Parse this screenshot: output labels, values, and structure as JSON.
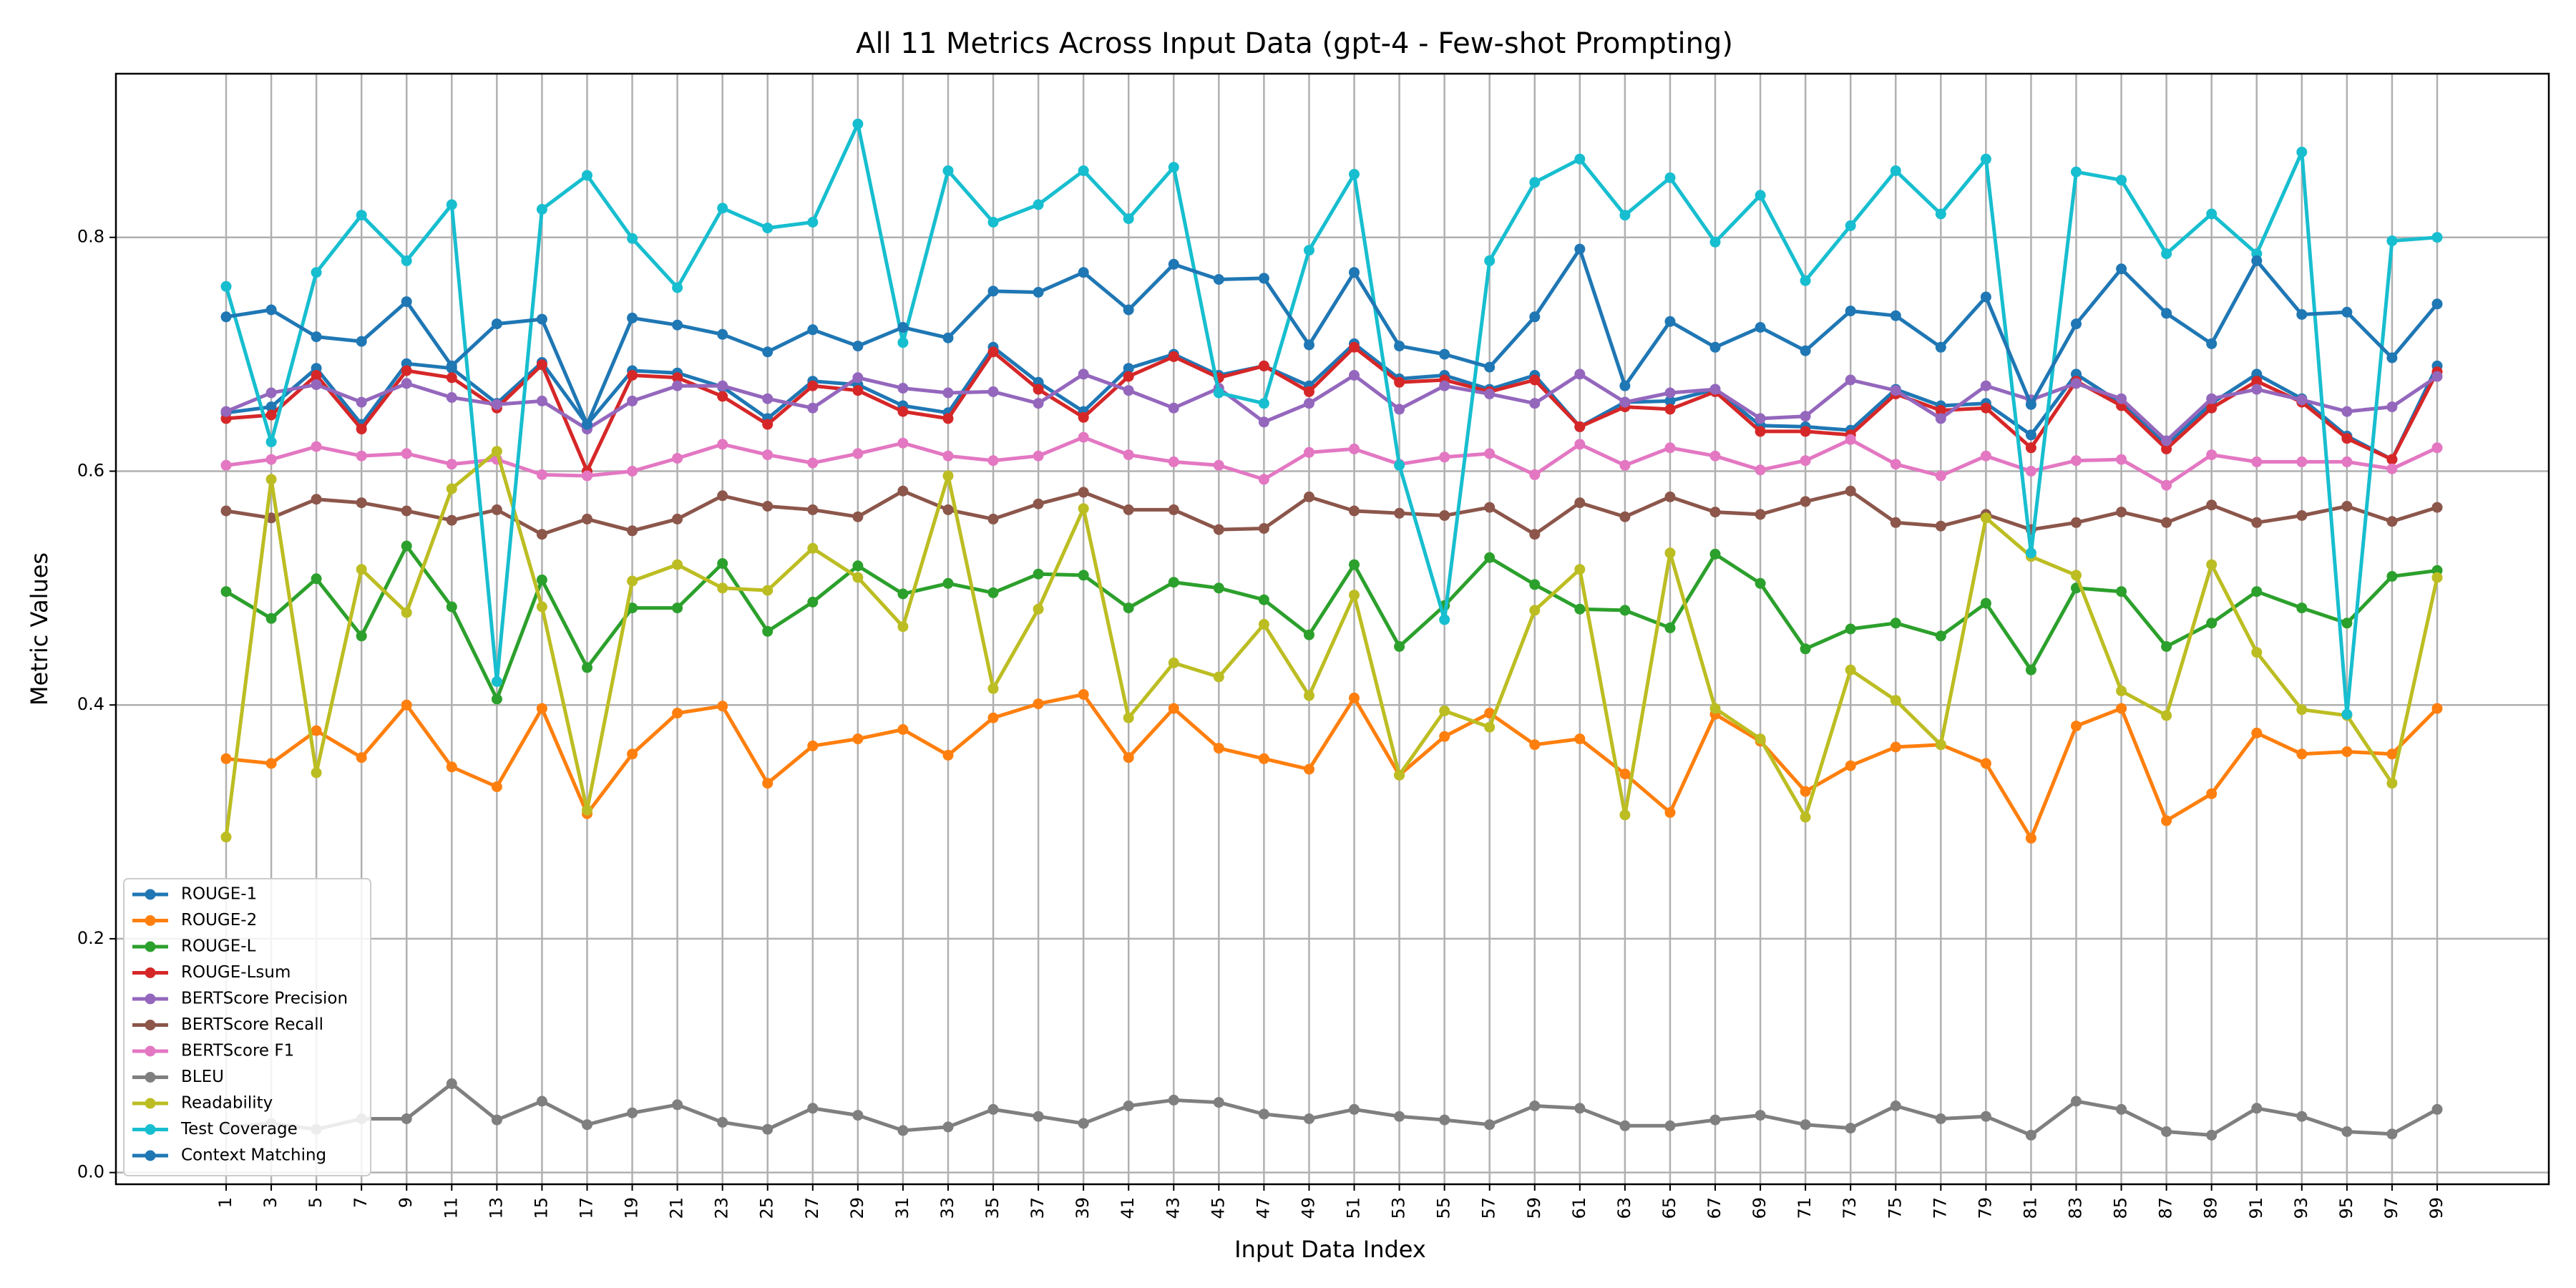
{
  "chart_data": {
    "type": "line",
    "title": "All 11 Metrics Across Input Data (gpt-4 - Few-shot Prompting)",
    "xlabel": "Input Data Index",
    "ylabel": "Metric Values",
    "ylim": [
      -0.01,
      0.94
    ],
    "yticks": [
      0.0,
      0.2,
      0.4,
      0.6,
      0.8
    ],
    "ytick_labels": [
      "0.0",
      "0.2",
      "0.4",
      "0.6",
      "0.8"
    ],
    "grid": true,
    "legend_position": "lower-left",
    "x": [
      1,
      3,
      5,
      7,
      9,
      11,
      13,
      15,
      17,
      19,
      21,
      23,
      25,
      27,
      29,
      31,
      33,
      35,
      37,
      39,
      41,
      43,
      45,
      47,
      49,
      51,
      53,
      55,
      57,
      59,
      61,
      63,
      65,
      67,
      69,
      71,
      73,
      75,
      77,
      79,
      81,
      83,
      85,
      87,
      89,
      91,
      93,
      95,
      97,
      99
    ],
    "series": [
      {
        "name": "ROUGE-1",
        "color": "#1f77b4",
        "values": [
          0.65,
          0.655,
          0.688,
          0.64,
          0.692,
          0.688,
          0.658,
          0.693,
          0.64,
          0.686,
          0.684,
          0.672,
          0.645,
          0.677,
          0.674,
          0.656,
          0.65,
          0.706,
          0.676,
          0.651,
          0.688,
          0.7,
          0.682,
          0.69,
          0.673,
          0.709,
          0.679,
          0.682,
          0.67,
          0.682,
          0.638,
          0.659,
          0.66,
          0.67,
          0.639,
          0.638,
          0.635,
          0.67,
          0.656,
          0.658,
          0.631,
          0.683,
          0.658,
          0.623,
          0.658,
          0.683,
          0.662,
          0.63,
          0.61,
          0.69
        ]
      },
      {
        "name": "ROUGE-2",
        "color": "#ff7f0e",
        "values": [
          0.354,
          0.35,
          0.378,
          0.355,
          0.4,
          0.347,
          0.33,
          0.397,
          0.307,
          0.358,
          0.393,
          0.399,
          0.333,
          0.365,
          0.371,
          0.379,
          0.357,
          0.389,
          0.401,
          0.409,
          0.355,
          0.397,
          0.363,
          0.354,
          0.345,
          0.406,
          0.34,
          0.373,
          0.393,
          0.366,
          0.371,
          0.341,
          0.308,
          0.392,
          0.369,
          0.326,
          0.348,
          0.364,
          0.366,
          0.35,
          0.286,
          0.382,
          0.397,
          0.301,
          0.324,
          0.376,
          0.358,
          0.36,
          0.358,
          0.397
        ]
      },
      {
        "name": "ROUGE-L",
        "color": "#2ca02c",
        "values": [
          0.497,
          0.474,
          0.508,
          0.459,
          0.536,
          0.484,
          0.405,
          0.507,
          0.432,
          0.483,
          0.483,
          0.521,
          0.463,
          0.488,
          0.519,
          0.495,
          0.504,
          0.496,
          0.512,
          0.511,
          0.483,
          0.505,
          0.5,
          0.49,
          0.46,
          0.52,
          0.45,
          0.485,
          0.526,
          0.503,
          0.482,
          0.481,
          0.466,
          0.529,
          0.504,
          0.448,
          0.465,
          0.47,
          0.459,
          0.487,
          0.43,
          0.5,
          0.497,
          0.45,
          0.47,
          0.497,
          0.483,
          0.47,
          0.51,
          0.515
        ]
      },
      {
        "name": "ROUGE-Lsum",
        "color": "#d62728",
        "values": [
          0.645,
          0.648,
          0.682,
          0.636,
          0.686,
          0.68,
          0.654,
          0.691,
          0.6,
          0.682,
          0.68,
          0.664,
          0.64,
          0.673,
          0.669,
          0.651,
          0.645,
          0.702,
          0.67,
          0.646,
          0.681,
          0.698,
          0.68,
          0.69,
          0.668,
          0.706,
          0.676,
          0.678,
          0.668,
          0.678,
          0.638,
          0.655,
          0.653,
          0.668,
          0.634,
          0.634,
          0.631,
          0.666,
          0.652,
          0.654,
          0.62,
          0.677,
          0.656,
          0.619,
          0.654,
          0.677,
          0.659,
          0.628,
          0.61,
          0.685
        ]
      },
      {
        "name": "BERTScore Precision",
        "color": "#9467bd",
        "values": [
          0.651,
          0.667,
          0.674,
          0.659,
          0.675,
          0.663,
          0.657,
          0.66,
          0.636,
          0.66,
          0.673,
          0.673,
          0.662,
          0.654,
          0.68,
          0.671,
          0.667,
          0.668,
          0.658,
          0.683,
          0.669,
          0.654,
          0.671,
          0.642,
          0.658,
          0.682,
          0.653,
          0.673,
          0.666,
          0.658,
          0.683,
          0.659,
          0.667,
          0.67,
          0.645,
          0.647,
          0.678,
          0.669,
          0.645,
          0.673,
          0.661,
          0.675,
          0.662,
          0.626,
          0.662,
          0.67,
          0.661,
          0.651,
          0.655,
          0.681
        ]
      },
      {
        "name": "BERTScore Recall",
        "color": "#8c564b",
        "values": [
          0.566,
          0.56,
          0.576,
          0.573,
          0.566,
          0.558,
          0.567,
          0.546,
          0.559,
          0.549,
          0.559,
          0.579,
          0.57,
          0.567,
          0.561,
          0.583,
          0.567,
          0.559,
          0.572,
          0.582,
          0.567,
          0.567,
          0.55,
          0.551,
          0.578,
          0.566,
          0.564,
          0.562,
          0.569,
          0.546,
          0.573,
          0.561,
          0.578,
          0.565,
          0.563,
          0.574,
          0.583,
          0.556,
          0.553,
          0.563,
          0.55,
          0.556,
          0.565,
          0.556,
          0.571,
          0.556,
          0.562,
          0.57,
          0.557,
          0.569
        ]
      },
      {
        "name": "BERTScore F1",
        "color": "#e377c2",
        "values": [
          0.605,
          0.61,
          0.621,
          0.613,
          0.615,
          0.606,
          0.61,
          0.597,
          0.596,
          0.6,
          0.611,
          0.623,
          0.614,
          0.607,
          0.615,
          0.624,
          0.613,
          0.609,
          0.613,
          0.629,
          0.614,
          0.608,
          0.605,
          0.593,
          0.616,
          0.619,
          0.606,
          0.612,
          0.615,
          0.597,
          0.623,
          0.605,
          0.62,
          0.613,
          0.601,
          0.609,
          0.627,
          0.606,
          0.596,
          0.613,
          0.6,
          0.609,
          0.61,
          0.588,
          0.614,
          0.608,
          0.608,
          0.608,
          0.602,
          0.62
        ]
      },
      {
        "name": "BLEU",
        "color": "#7f7f7f",
        "values": [
          0.039,
          0.042,
          0.037,
          0.046,
          0.046,
          0.076,
          0.045,
          0.061,
          0.041,
          0.051,
          0.058,
          0.043,
          0.037,
          0.055,
          0.049,
          0.036,
          0.039,
          0.054,
          0.048,
          0.042,
          0.057,
          0.062,
          0.06,
          0.05,
          0.046,
          0.054,
          0.048,
          0.045,
          0.041,
          0.057,
          0.055,
          0.04,
          0.04,
          0.045,
          0.049,
          0.041,
          0.038,
          0.057,
          0.046,
          0.048,
          0.032,
          0.061,
          0.054,
          0.035,
          0.032,
          0.055,
          0.048,
          0.035,
          0.033,
          0.054
        ]
      },
      {
        "name": "Readability",
        "color": "#bcbd22",
        "values": [
          0.287,
          0.593,
          0.342,
          0.516,
          0.479,
          0.585,
          0.617,
          0.484,
          0.31,
          0.506,
          0.52,
          0.5,
          0.498,
          0.534,
          0.509,
          0.467,
          0.596,
          0.414,
          0.482,
          0.568,
          0.389,
          0.436,
          0.424,
          0.469,
          0.408,
          0.494,
          0.34,
          0.395,
          0.381,
          0.481,
          0.516,
          0.306,
          0.53,
          0.397,
          0.371,
          0.304,
          0.43,
          0.404,
          0.366,
          0.56,
          0.527,
          0.511,
          0.412,
          0.391,
          0.52,
          0.445,
          0.396,
          0.391,
          0.333,
          0.509
        ]
      },
      {
        "name": "Test Coverage",
        "color": "#17becf",
        "values": [
          0.758,
          0.625,
          0.77,
          0.819,
          0.78,
          0.828,
          0.42,
          0.824,
          0.853,
          0.799,
          0.757,
          0.825,
          0.808,
          0.813,
          0.897,
          0.71,
          0.857,
          0.813,
          0.828,
          0.857,
          0.816,
          0.86,
          0.667,
          0.658,
          0.789,
          0.854,
          0.605,
          0.473,
          0.78,
          0.847,
          0.867,
          0.819,
          0.851,
          0.796,
          0.836,
          0.763,
          0.81,
          0.857,
          0.82,
          0.867,
          0.53,
          0.856,
          0.849,
          0.786,
          0.82,
          0.786,
          0.873,
          0.392,
          0.797,
          0.8
        ]
      },
      {
        "name": "Context Matching",
        "color": "#1f77b4",
        "values": [
          0.732,
          0.738,
          0.715,
          0.711,
          0.745,
          0.69,
          0.726,
          0.73,
          0.64,
          0.731,
          0.725,
          0.717,
          0.702,
          0.721,
          0.707,
          0.723,
          0.714,
          0.754,
          0.753,
          0.77,
          0.738,
          0.777,
          0.764,
          0.765,
          0.708,
          0.77,
          0.707,
          0.7,
          0.689,
          0.732,
          0.79,
          0.673,
          0.728,
          0.706,
          0.723,
          0.703,
          0.737,
          0.733,
          0.706,
          0.749,
          0.657,
          0.726,
          0.773,
          0.735,
          0.709,
          0.78,
          0.734,
          0.736,
          0.697,
          0.743
        ]
      }
    ]
  }
}
